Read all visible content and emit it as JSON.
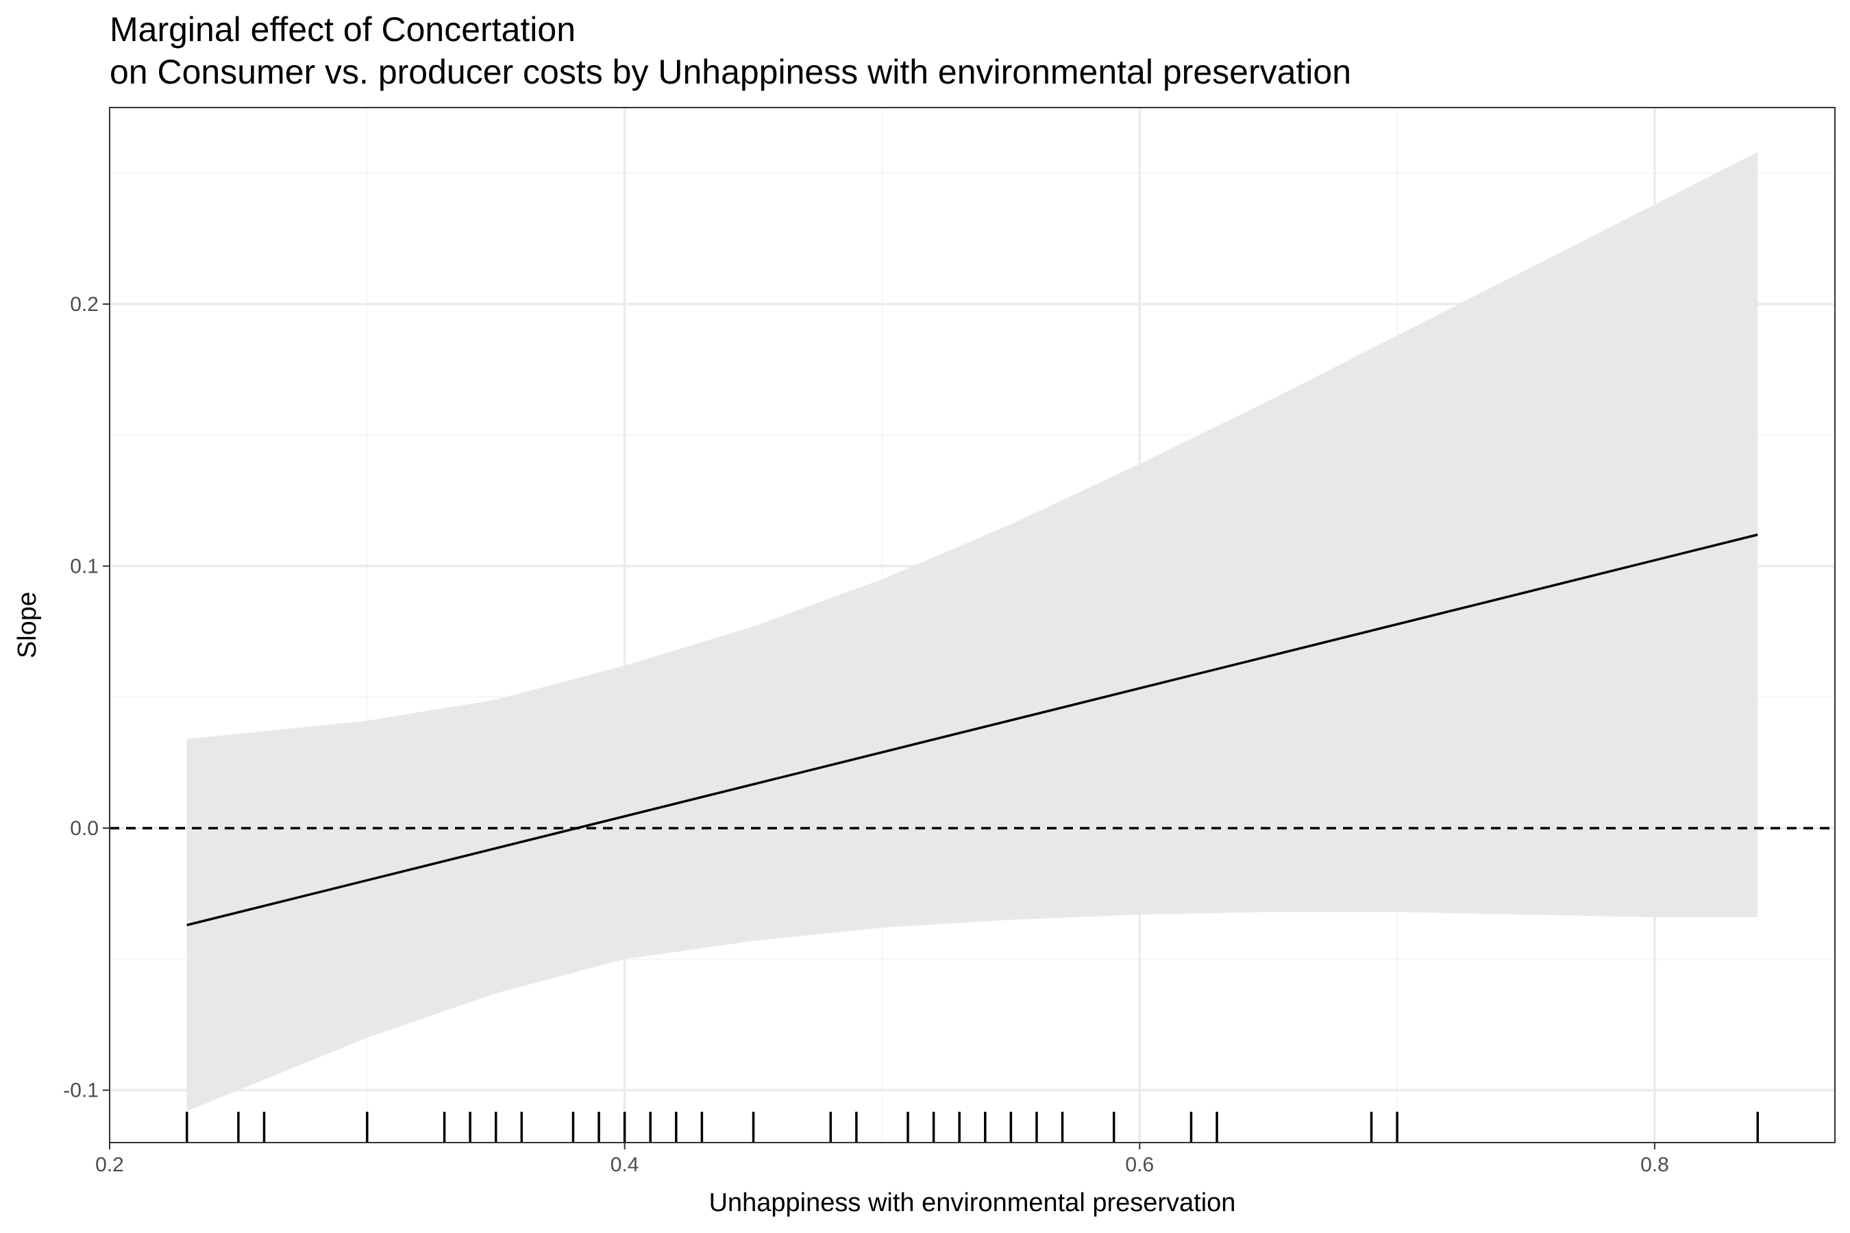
{
  "chart_data": {
    "type": "line",
    "title": "Marginal effect of Concertation",
    "subtitle": "on Consumer vs. producer costs by Unhappiness with environmental preservation",
    "xlabel": "Unhappiness with environmental preservation",
    "ylabel": "Slope",
    "xlim": [
      0.2,
      0.87
    ],
    "ylim": [
      -0.12,
      0.275
    ],
    "x_ticks": [
      0.2,
      0.4,
      0.6,
      0.8
    ],
    "x_tick_labels": [
      "0.2",
      "0.4",
      "0.6",
      "0.8"
    ],
    "y_ticks": [
      -0.1,
      0.0,
      0.1,
      0.2
    ],
    "y_tick_labels": [
      "-0.1",
      "0.0",
      "0.1",
      "0.2"
    ],
    "grid": true,
    "reference_line": {
      "y": 0.0,
      "style": "dashed"
    },
    "series": [
      {
        "type": "line",
        "x": [
          0.23,
          0.84
        ],
        "y": [
          -0.037,
          0.112
        ]
      }
    ],
    "confidence_band": {
      "x": [
        0.23,
        0.25,
        0.3,
        0.35,
        0.4,
        0.45,
        0.5,
        0.55,
        0.6,
        0.65,
        0.7,
        0.75,
        0.8,
        0.84
      ],
      "upper": [
        0.034,
        0.036,
        0.041,
        0.049,
        0.062,
        0.077,
        0.095,
        0.116,
        0.139,
        0.163,
        0.188,
        0.213,
        0.238,
        0.258
      ],
      "lower": [
        -0.108,
        -0.1,
        -0.08,
        -0.063,
        -0.05,
        -0.043,
        -0.038,
        -0.035,
        -0.033,
        -0.032,
        -0.032,
        -0.033,
        -0.034,
        -0.034
      ]
    },
    "rug_x": [
      0.23,
      0.25,
      0.26,
      0.3,
      0.33,
      0.34,
      0.35,
      0.36,
      0.38,
      0.39,
      0.4,
      0.41,
      0.42,
      0.43,
      0.45,
      0.48,
      0.49,
      0.51,
      0.52,
      0.53,
      0.54,
      0.55,
      0.56,
      0.57,
      0.59,
      0.62,
      0.63,
      0.69,
      0.7,
      0.84
    ],
    "colors": {
      "band": "#e8e8e8",
      "line": "#000000",
      "grid_major": "#ebebeb",
      "grid_minor": "#f5f5f5",
      "panel_border": "#333333",
      "tick_text": "#4d4d4d"
    }
  }
}
